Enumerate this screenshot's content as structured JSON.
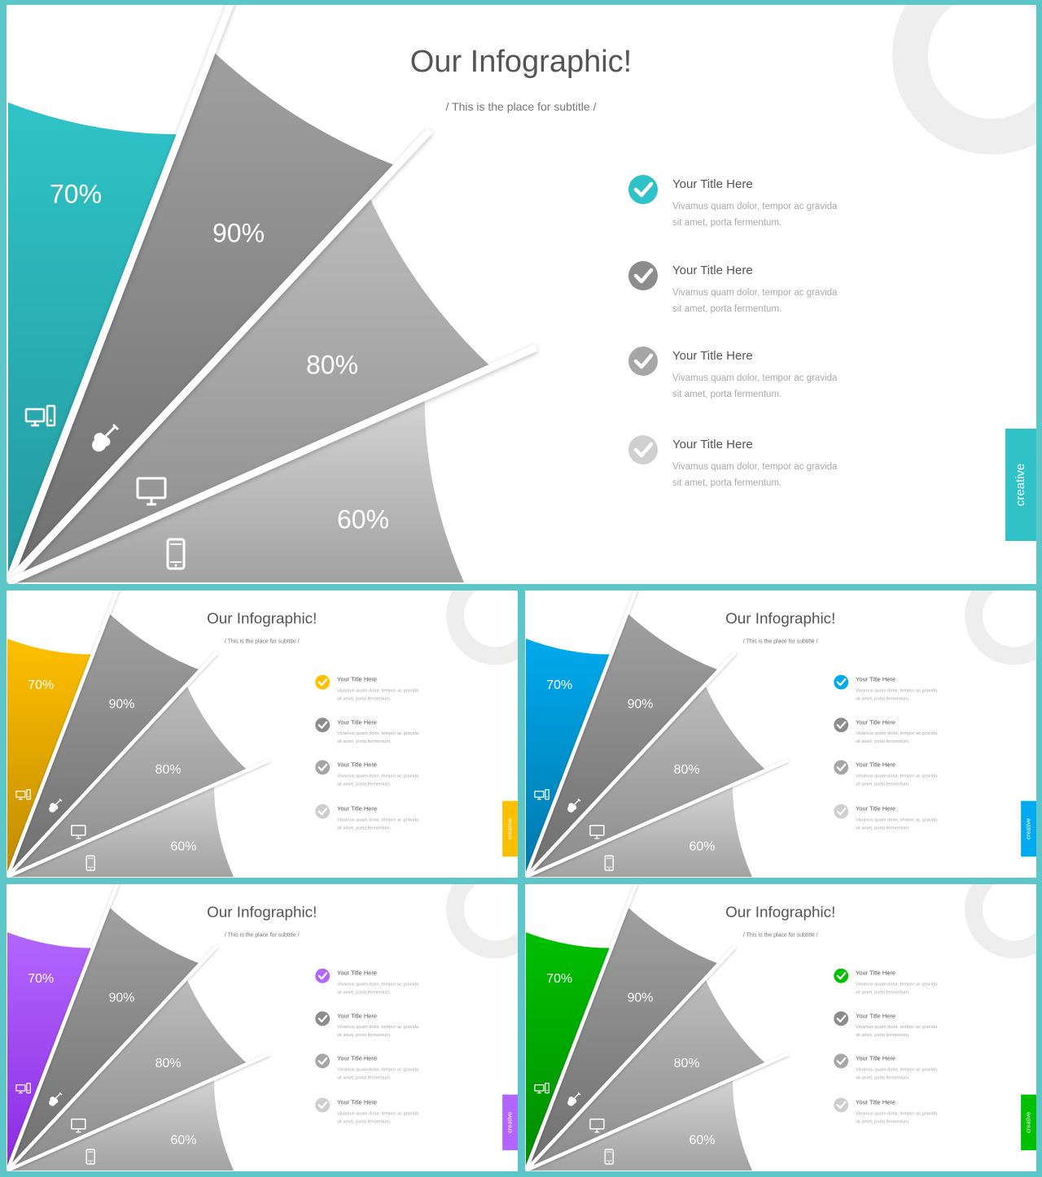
{
  "template": {
    "title": "Our Infographic!",
    "subtitle": "/ This is the place for subtitle /",
    "tab_label": "creative",
    "segments": [
      {
        "value_label": "70%",
        "icon": "desktop-tower-icon"
      },
      {
        "value_label": "90%",
        "icon": "guitar-icon"
      },
      {
        "value_label": "80%",
        "icon": "monitor-icon"
      },
      {
        "value_label": "60%",
        "icon": "smartphone-icon"
      }
    ],
    "list_items": [
      {
        "title": "Your Title Here",
        "text_line1": "Vivamus quam dolor, tempor ac gravida",
        "text_line2": "sit amet, porta fermentum."
      },
      {
        "title": "Your Title Here",
        "text_line1": "Vivamus quam dolor, tempor ac gravida",
        "text_line2": "sit amet, porta fermentum."
      },
      {
        "title": "Your Title Here",
        "text_line1": "Vivamus quam dolor, tempor ac gravida",
        "text_line2": "sit amet, porta fermentum."
      },
      {
        "title": "Your Title Here",
        "text_line1": "Vivamus quam dolor, tempor ac gravida",
        "text_line2": "sit amet, porta fermentum."
      }
    ],
    "check_icon": "check-circle-icon"
  },
  "slides": [
    {
      "id": "slide-main",
      "name": "slide-teal",
      "accent": "#2fc3c8",
      "accent_dark": "#24999e"
    },
    {
      "id": "slide-amber",
      "name": "slide-amber",
      "accent": "#ffc000",
      "accent_dark": "#c08a00"
    },
    {
      "id": "slide-blue",
      "name": "slide-blue",
      "accent": "#00aaee",
      "accent_dark": "#0077aa"
    },
    {
      "id": "slide-purple",
      "name": "slide-purple",
      "accent": "#b366ff",
      "accent_dark": "#8a2be2"
    },
    {
      "id": "slide-green",
      "name": "slide-green",
      "accent": "#00c000",
      "accent_dark": "#008a00"
    }
  ],
  "colors": {
    "gray_dark": "#8a8a8a",
    "gray_mid": "#a6a6a6",
    "gray_light": "#bdbdbd",
    "gray_lighter": "#d2d2d2",
    "check_grays": [
      "#8c8c8c",
      "#a6a6a6",
      "#cfcfcf"
    ],
    "title_text": "#555555",
    "body_text": "#aaaaaa",
    "ring": "#eeeeee"
  }
}
